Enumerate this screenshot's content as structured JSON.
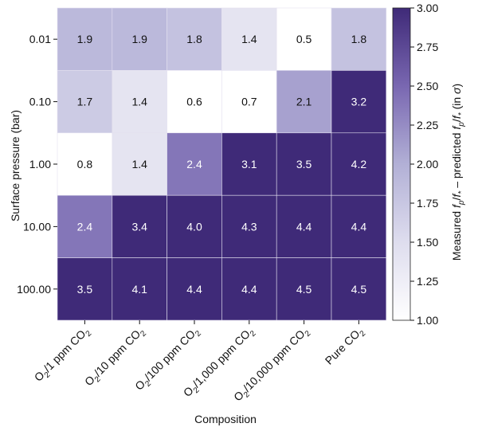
{
  "chart_data": {
    "type": "heatmap",
    "xlabel": "Composition",
    "ylabel": "Surface pressure (bar)",
    "x_categories": [
      {
        "base": "O",
        "sub": "2",
        "rest": "/1 ppm CO",
        "sub2": "2"
      },
      {
        "base": "O",
        "sub": "2",
        "rest": "/10 ppm CO",
        "sub2": "2"
      },
      {
        "base": "O",
        "sub": "2",
        "rest": "/100 ppm CO",
        "sub2": "2"
      },
      {
        "base": "O",
        "sub": "2",
        "rest": "/1,000 ppm CO",
        "sub2": "2"
      },
      {
        "base": "O",
        "sub": "2",
        "rest": "/10,000 ppm CO",
        "sub2": "2"
      },
      {
        "base": "",
        "sub": "",
        "rest": "Pure CO",
        "sub2": "2"
      }
    ],
    "y_categories": [
      "0.01",
      "0.10",
      "1.00",
      "10.00",
      "100.00"
    ],
    "values": [
      [
        1.9,
        1.9,
        1.8,
        1.4,
        0.5,
        1.8
      ],
      [
        1.7,
        1.4,
        0.6,
        0.7,
        2.1,
        3.2
      ],
      [
        0.8,
        1.4,
        2.4,
        3.1,
        3.5,
        4.2
      ],
      [
        2.4,
        3.4,
        4.0,
        4.3,
        4.4,
        4.4
      ],
      [
        3.5,
        4.1,
        4.4,
        4.4,
        4.5,
        4.5
      ]
    ],
    "colorbar": {
      "label_parts": [
        "Measured ",
        "f",
        "p",
        "/",
        "f",
        "*",
        " – predicted ",
        "f",
        "p",
        "/",
        "f",
        "*",
        " (in ",
        "σ",
        ")"
      ],
      "vmin": 1.0,
      "vmax": 3.0,
      "ticks": [
        "1.00",
        "1.25",
        "1.50",
        "1.75",
        "2.00",
        "2.25",
        "2.50",
        "2.75",
        "3.00"
      ],
      "colormap": "Purples",
      "color_low": "#ffffff",
      "color_high": "#3f2a78"
    }
  }
}
